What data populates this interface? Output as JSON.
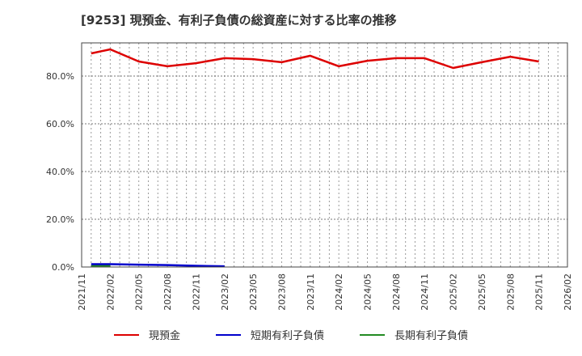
{
  "title": "[9253]  現預金、有利子負債の総資産に対する比率の推移",
  "legend": {
    "items": [
      {
        "label": "現預金",
        "color": "#dd0000"
      },
      {
        "label": "短期有利子負債",
        "color": "#0000cc"
      },
      {
        "label": "長期有利子負債",
        "color": "#228b22"
      }
    ]
  },
  "axes": {
    "y_ticks": [
      "0.0%",
      "20.0%",
      "40.0%",
      "60.0%",
      "80.0%"
    ],
    "x_ticks": [
      "2021/11",
      "2022/02",
      "2022/05",
      "2022/08",
      "2022/11",
      "2023/02",
      "2023/05",
      "2023/08",
      "2023/11",
      "2024/02",
      "2024/05",
      "2024/08",
      "2024/11",
      "2025/02",
      "2025/05",
      "2025/08",
      "2025/11",
      "2026/02"
    ]
  },
  "chart_data": {
    "type": "line",
    "title": "[9253]  現預金、有利子負債の総資産に対する比率の推移",
    "xlabel": "",
    "ylabel": "",
    "ylim": [
      0,
      94
    ],
    "grid": true,
    "legend_position": "bottom",
    "x_tick_labels": [
      "2021/11",
      "2022/02",
      "2022/05",
      "2022/08",
      "2022/11",
      "2023/02",
      "2023/05",
      "2023/08",
      "2023/11",
      "2024/02",
      "2024/05",
      "2024/08",
      "2024/11",
      "2025/02",
      "2025/05",
      "2025/08",
      "2025/11",
      "2026/02"
    ],
    "y_tick_labels": [
      "0.0%",
      "20.0%",
      "40.0%",
      "60.0%",
      "80.0%"
    ],
    "series": [
      {
        "name": "現預金",
        "color": "#dd0000",
        "x": [
          "2021/12",
          "2022/02",
          "2022/05",
          "2022/08",
          "2022/11",
          "2023/02",
          "2023/05",
          "2023/08",
          "2023/11",
          "2024/02",
          "2024/05",
          "2024/08",
          "2024/11",
          "2025/02",
          "2025/05",
          "2025/08",
          "2025/11"
        ],
        "values": [
          89.5,
          91.2,
          86.1,
          84.1,
          85.4,
          87.5,
          87.1,
          85.8,
          88.5,
          84.1,
          86.4,
          87.5,
          87.5,
          83.4,
          85.8,
          88.1,
          86.1
        ]
      },
      {
        "name": "短期有利子負債",
        "color": "#0000cc",
        "x": [
          "2021/12",
          "2022/02",
          "2022/05",
          "2022/08",
          "2022/11",
          "2023/02"
        ],
        "values": [
          1.2,
          1.2,
          1.0,
          0.8,
          0.5,
          0.3
        ]
      },
      {
        "name": "長期有利子負債",
        "color": "#228b22",
        "x": [
          "2021/12",
          "2022/02"
        ],
        "values": [
          0.5,
          0.5
        ]
      }
    ]
  }
}
